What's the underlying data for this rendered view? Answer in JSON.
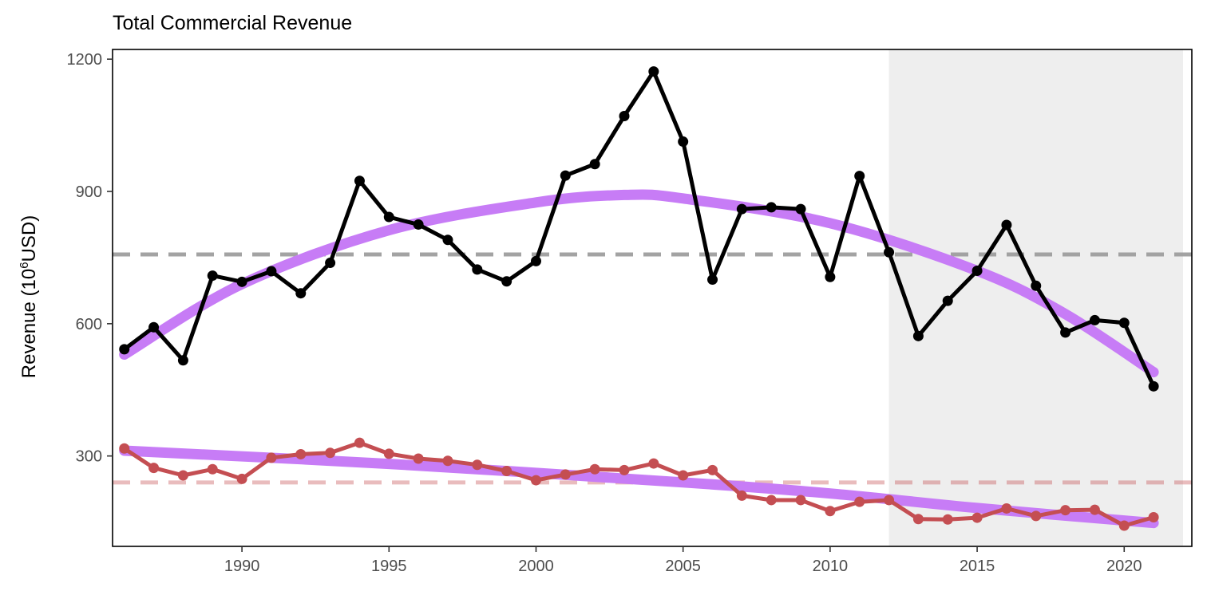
{
  "chart_data": {
    "type": "line",
    "title": "Total Commercial Revenue",
    "xlabel": "",
    "ylabel": {
      "prefix": "Revenue (10",
      "superscript": "6",
      "suffix": "USD)"
    },
    "xlim": [
      1985.6,
      2022.3
    ],
    "ylim": [
      95,
      1222
    ],
    "x_ticks": [
      1990,
      1995,
      2000,
      2005,
      2010,
      2015,
      2020
    ],
    "y_ticks": [
      300,
      600,
      900,
      1200
    ],
    "grid": false,
    "shaded_region": {
      "x_start": 2012,
      "x_end": 2022,
      "color": "#eeeeee"
    },
    "x": [
      1986,
      1987,
      1988,
      1989,
      1990,
      1991,
      1992,
      1993,
      1994,
      1995,
      1996,
      1997,
      1998,
      1999,
      2000,
      2001,
      2002,
      2003,
      2004,
      2005,
      2006,
      2007,
      2008,
      2009,
      2010,
      2011,
      2012,
      2013,
      2014,
      2015,
      2016,
      2017,
      2018,
      2019,
      2020,
      2021
    ],
    "series": [
      {
        "color": "#000000",
        "values": [
          542,
          592,
          517,
          709,
          695,
          719,
          669,
          738,
          924,
          842,
          825,
          790,
          723,
          696,
          742,
          936,
          962,
          1071,
          1172,
          1013,
          700,
          860,
          864,
          860,
          706,
          935,
          762,
          572,
          652,
          720,
          824,
          686,
          580,
          608,
          602,
          458
        ]
      },
      {
        "color": "#c44e52",
        "values": [
          317,
          273,
          256,
          270,
          248,
          296,
          304,
          307,
          330,
          305,
          294,
          289,
          280,
          266,
          245,
          258,
          270,
          268,
          283,
          256,
          268,
          210,
          200,
          200,
          175,
          196,
          200,
          157,
          156,
          160,
          181,
          164,
          177,
          178,
          142,
          161
        ]
      }
    ],
    "trend_lines": [
      {
        "color": "#c77cf6",
        "points": [
          [
            1986,
            530
          ],
          [
            1990,
            690
          ],
          [
            1995,
            812
          ],
          [
            2000,
            875
          ],
          [
            2003,
            892
          ],
          [
            2005,
            884
          ],
          [
            2010,
            828
          ],
          [
            2015,
            720
          ],
          [
            2018,
            622
          ],
          [
            2021,
            490
          ]
        ]
      },
      {
        "color": "#c77cf6",
        "points": [
          [
            1986,
            312
          ],
          [
            1995,
            282
          ],
          [
            2005,
            240
          ],
          [
            2010,
            215
          ],
          [
            2015,
            182
          ],
          [
            2021,
            148
          ]
        ]
      }
    ],
    "reference_lines": [
      {
        "y": 757,
        "color": "#999999",
        "opacity": 0.9
      },
      {
        "y": 240,
        "color": "#c44e52",
        "opacity": 0.38
      }
    ]
  }
}
